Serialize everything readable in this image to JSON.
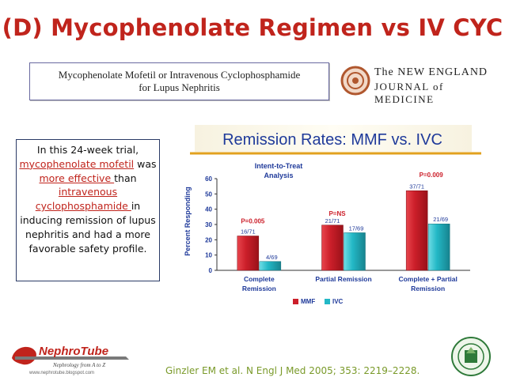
{
  "slide": {
    "title": "(D) Mycophenolate Regimen vs IV CYC"
  },
  "paper": {
    "title_line1": "Mycophenolate Mofetil or Intravenous Cyclophosphamide",
    "title_line2": "for Lupus Nephritis"
  },
  "journal": {
    "line1": "The NEW ENGLAND",
    "line2": "JOURNAL of MEDICINE"
  },
  "info": {
    "t1": "In this 24-week trial, ",
    "t2": "mycophenolate mofetil",
    "t3": " was ",
    "t4": "more effective ",
    "t5": "than ",
    "t6": "intravenous cyclophosphamide ",
    "t7": "in inducing remission of lupus nephritis and had a more favorable safety profile."
  },
  "citation": "Ginzler EM et al. N Engl J Med 2005; 353: 2219–2228.",
  "logos": {
    "nephrotube_name": "NephroTube",
    "nephrotube_tagline": "Nephrology from A to Z",
    "nephrotube_url": "www.nephrotube.blogspot.com"
  },
  "chart_data": {
    "type": "bar",
    "title": "Remission Rates: MMF vs. IVC",
    "subtitle_line1": "Intent-to-Treat",
    "subtitle_line2": "Analysis",
    "ylabel": "Percent Responding",
    "ylim": [
      0,
      60
    ],
    "yticks": [
      "0",
      "10",
      "20",
      "30",
      "40",
      "50",
      "60"
    ],
    "categories": [
      [
        "Complete",
        "Remission"
      ],
      [
        "Partial Remission"
      ],
      [
        "Complete + Partial",
        "Remission"
      ]
    ],
    "series": [
      {
        "name": "MMF",
        "values": [
          22.5,
          29.6,
          52.1
        ],
        "labels": [
          "16/71",
          "21/71",
          "37/71"
        ],
        "color": "#cc1f2a"
      },
      {
        "name": "IVC",
        "values": [
          5.8,
          24.6,
          30.4
        ],
        "labels": [
          "4/69",
          "17/69",
          "21/69"
        ],
        "color": "#23b8c6"
      }
    ],
    "p_values": [
      "P=0.005",
      "P=NS",
      "P=0.009"
    ],
    "legend_position": "bottom"
  }
}
